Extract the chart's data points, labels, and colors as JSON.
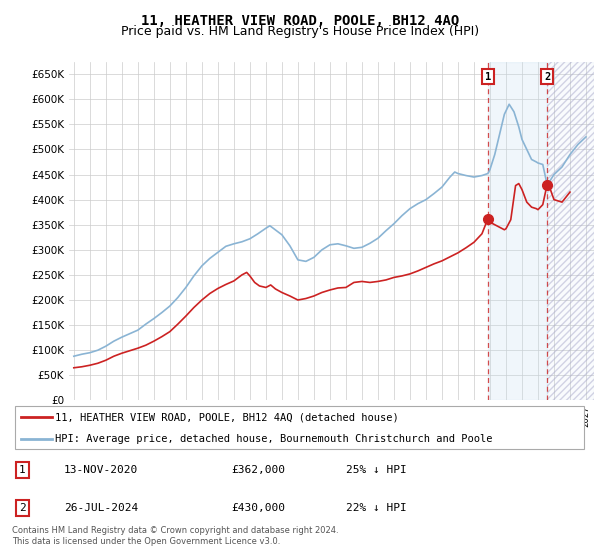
{
  "title": "11, HEATHER VIEW ROAD, POOLE, BH12 4AQ",
  "subtitle": "Price paid vs. HM Land Registry's House Price Index (HPI)",
  "title_fontsize": 10,
  "subtitle_fontsize": 9,
  "ytick_values": [
    0,
    50000,
    100000,
    150000,
    200000,
    250000,
    300000,
    350000,
    400000,
    450000,
    500000,
    550000,
    600000,
    650000
  ],
  "ylim": [
    0,
    675000
  ],
  "xlim_start": 1994.7,
  "xlim_end": 2027.5,
  "hpi_color": "#8ab4d4",
  "price_color": "#cc2222",
  "transaction1_year": 2020.87,
  "transaction1_value": 362000,
  "transaction2_year": 2024.57,
  "transaction2_value": 430000,
  "transaction1_date": "13-NOV-2020",
  "transaction1_price": "£362,000",
  "transaction1_hpi": "25% ↓ HPI",
  "transaction2_date": "26-JUL-2024",
  "transaction2_price": "£430,000",
  "transaction2_hpi": "22% ↓ HPI",
  "legend_label_price": "11, HEATHER VIEW ROAD, POOLE, BH12 4AQ (detached house)",
  "legend_label_hpi": "HPI: Average price, detached house, Bournemouth Christchurch and Poole",
  "footer_text": "Contains HM Land Registry data © Crown copyright and database right 2024.\nThis data is licensed under the Open Government Licence v3.0.",
  "background_color": "#ffffff",
  "grid_color": "#cccccc",
  "hpi_blue_shade": "#ddeeff"
}
